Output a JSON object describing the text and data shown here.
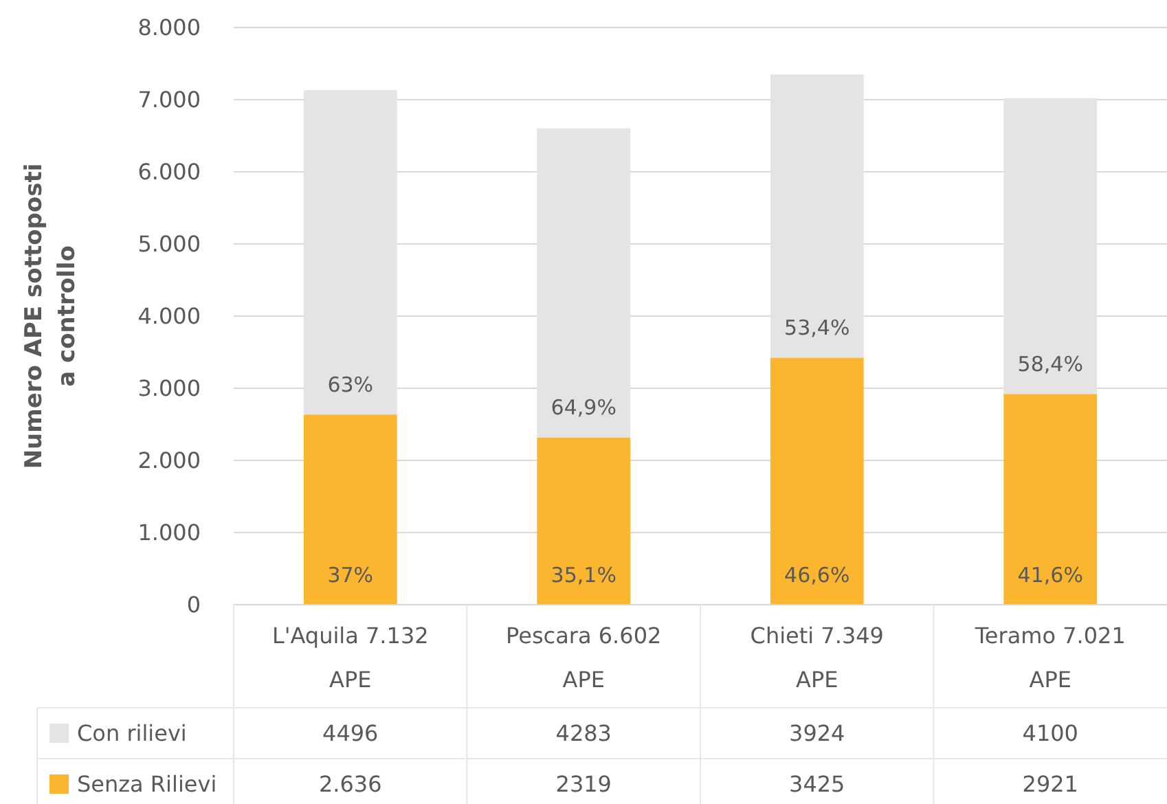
{
  "chart_data": {
    "type": "bar",
    "stacked": true,
    "ylabel": "Numero APE sottoposti a controllo",
    "categories": [
      "L'Aquila 7.132 APE",
      "Pescara 6.602 APE",
      "Chieti 7.349 APE",
      "Teramo 7.021 APE"
    ],
    "series": [
      {
        "name": "Senza Rilievi",
        "color": "#fbb52f",
        "values": [
          2636,
          2319,
          3425,
          2921
        ],
        "value_labels": [
          "2.636",
          "2319",
          "3425",
          "2921"
        ]
      },
      {
        "name": "Con rilievi",
        "color": "#e4e4e4",
        "values": [
          4496,
          4283,
          3924,
          4100
        ],
        "value_labels": [
          "4496",
          "4283",
          "3924",
          "4100"
        ]
      }
    ],
    "ylim": [
      0,
      8000
    ],
    "yticks": [
      {
        "value": 0,
        "label": "0"
      },
      {
        "value": 1000,
        "label": "1.000"
      },
      {
        "value": 2000,
        "label": "2.000"
      },
      {
        "value": 3000,
        "label": "3.000"
      },
      {
        "value": 4000,
        "label": "4.000"
      },
      {
        "value": 5000,
        "label": "5.000"
      },
      {
        "value": 6000,
        "label": "6.000"
      },
      {
        "value": 7000,
        "label": "7.000"
      },
      {
        "value": 8000,
        "label": "8.000"
      }
    ],
    "grid": "y",
    "legend": "bottom",
    "annotations": [
      "37%",
      "63%",
      "35,1%",
      "64,9%",
      "46,6%",
      "53,4%",
      "41,6%",
      "58,4%"
    ]
  }
}
